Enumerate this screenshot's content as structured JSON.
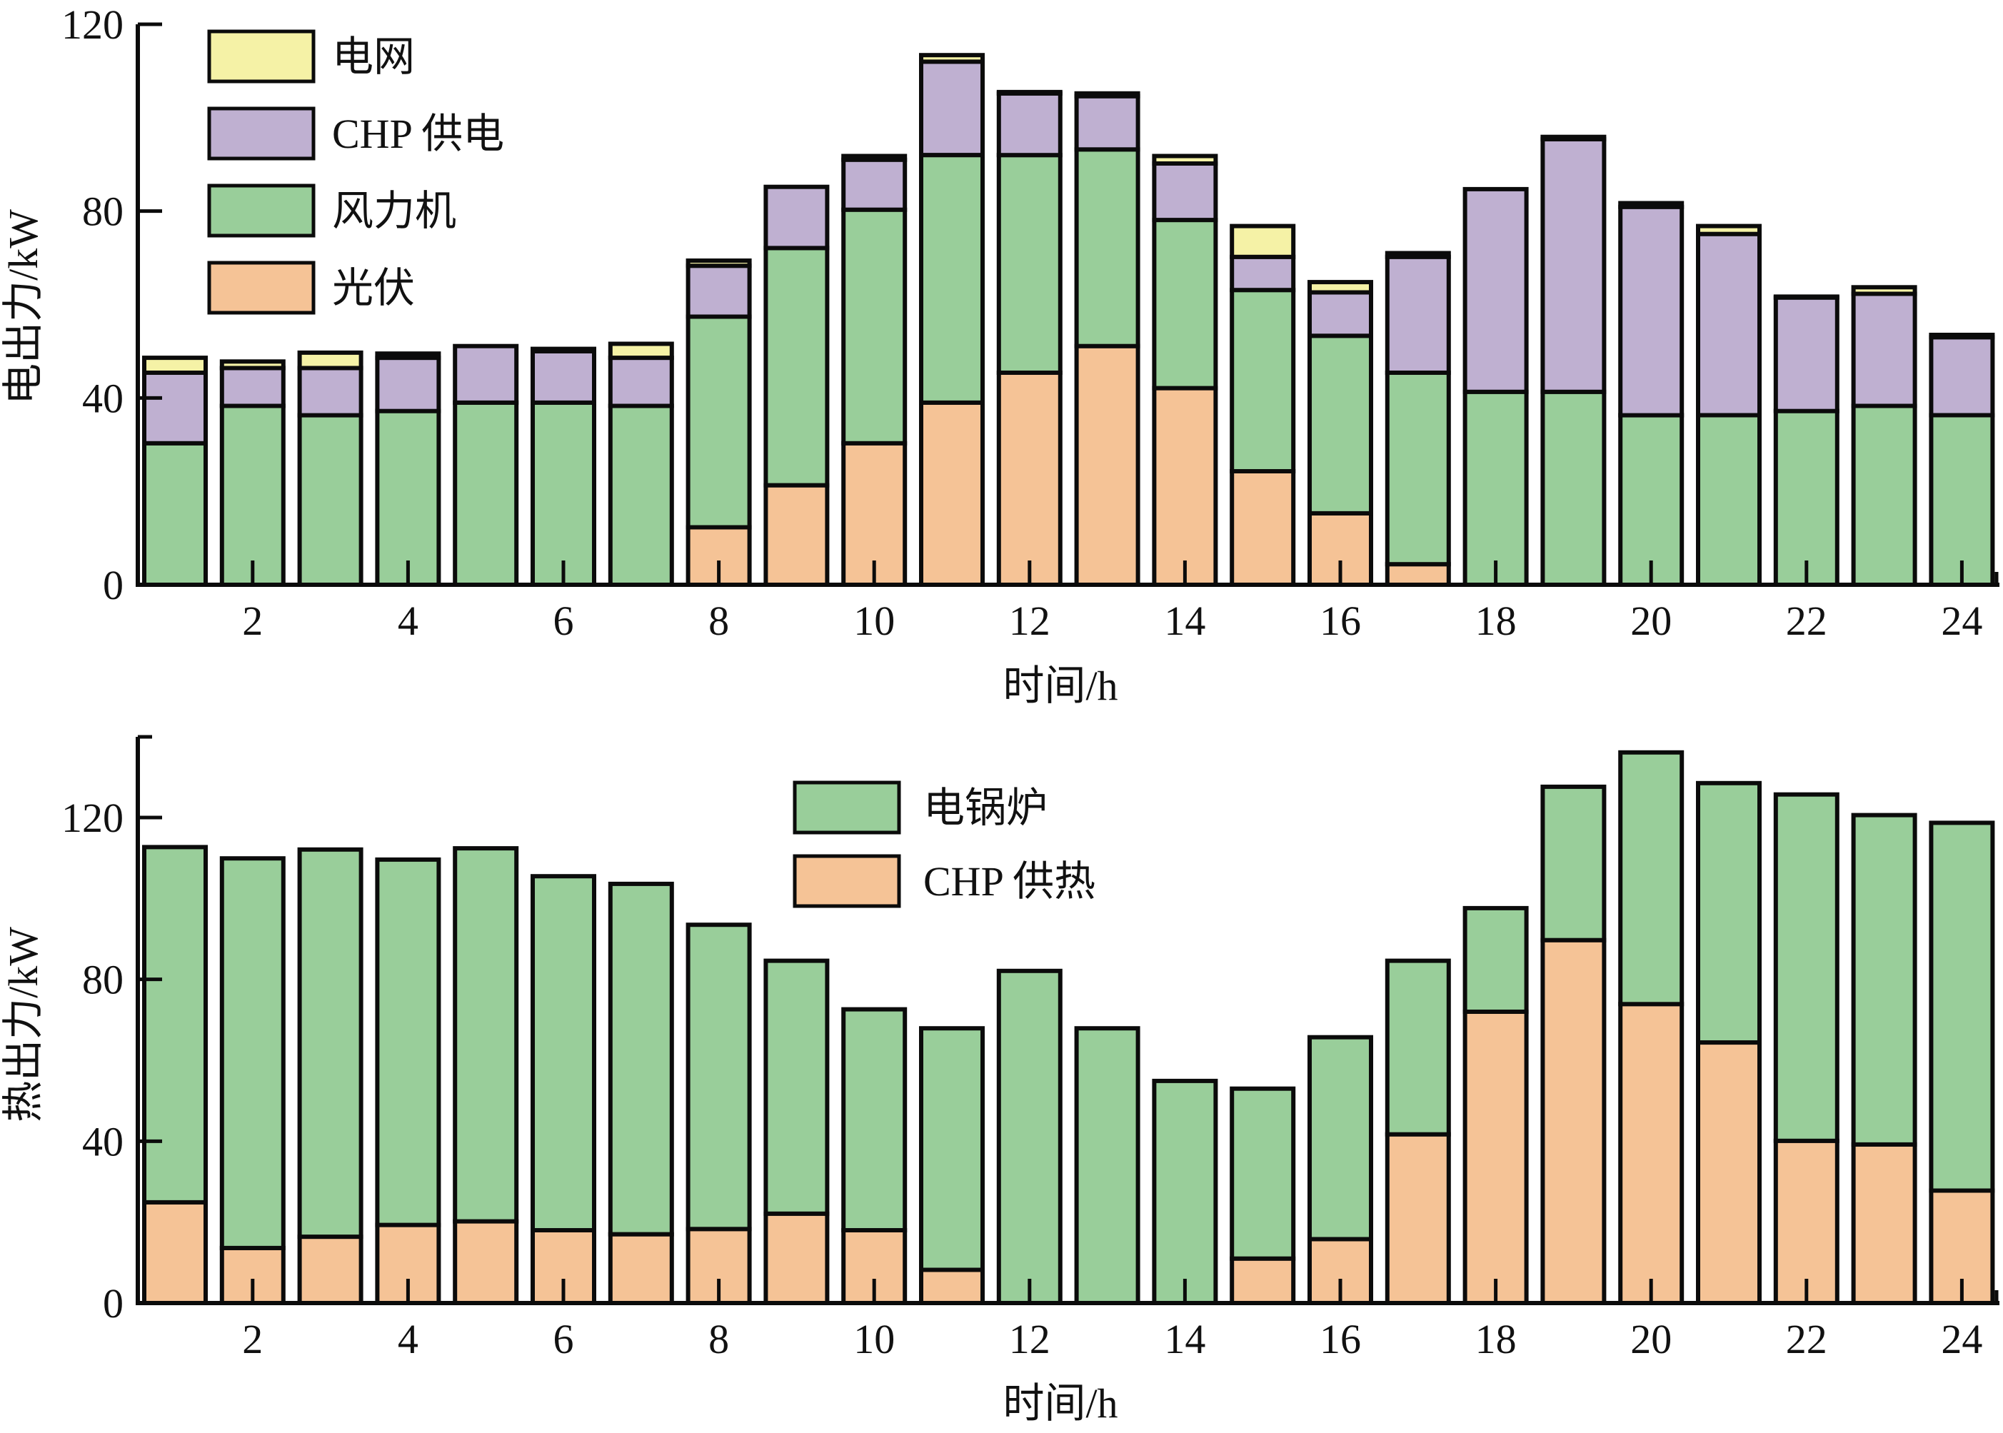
{
  "chart_data": [
    {
      "type": "bar",
      "stacked": true,
      "xlabel": "时间/h",
      "ylabel": "电出力/kW",
      "ylim": [
        0,
        120
      ],
      "yticks": [
        "0",
        "40",
        "80",
        "120"
      ],
      "ytick_values": [
        0,
        40,
        80,
        120
      ],
      "xticks": [
        "2",
        "4",
        "6",
        "8",
        "10",
        "12",
        "14",
        "16",
        "18",
        "20",
        "22",
        "24"
      ],
      "xtick_values": [
        2,
        4,
        6,
        8,
        10,
        12,
        14,
        16,
        18,
        20,
        22,
        24
      ],
      "x": [
        1,
        2,
        3,
        4,
        5,
        6,
        7,
        8,
        9,
        10,
        11,
        12,
        13,
        14,
        15,
        16,
        17,
        18,
        19,
        20,
        21,
        22,
        23,
        24
      ],
      "legend_position": "top-left",
      "legend_order": [
        "电网",
        "CHP 供电",
        "风力机",
        "光伏"
      ],
      "series": [
        {
          "name": "光伏",
          "color": "#f5c396",
          "values": [
            0,
            0,
            0,
            0,
            0,
            0,
            0,
            12.3,
            21.3,
            30.3,
            39,
            45.4,
            51.1,
            42.1,
            24.3,
            15.3,
            4.4,
            0,
            0,
            0,
            0,
            0,
            0,
            0
          ]
        },
        {
          "name": "风力机",
          "color": "#99ce9a",
          "values": [
            30.3,
            38.3,
            36.3,
            37.2,
            39,
            39,
            38.3,
            45.1,
            50.8,
            50,
            53,
            46.6,
            42.1,
            36,
            38.8,
            38,
            41,
            41.3,
            41.3,
            36.3,
            36.3,
            37.2,
            38.3,
            36.3
          ]
        },
        {
          "name": "CHP 供电",
          "color": "#bfb0d1",
          "values": [
            15.1,
            8.1,
            10.1,
            11.4,
            12.1,
            11,
            10.3,
            10.9,
            13.1,
            10.7,
            20,
            13.2,
            11.4,
            12.1,
            7.1,
            9.3,
            24.8,
            43.4,
            54.1,
            44.6,
            38.8,
            24.3,
            24,
            16.7
          ]
        },
        {
          "name": "电网",
          "color": "#f5f2a6",
          "values": [
            3.2,
            1.4,
            3.3,
            0.9,
            0,
            0.5,
            3,
            1.1,
            0,
            0.8,
            1.4,
            0.3,
            0.6,
            1.6,
            6.6,
            2.2,
            0.8,
            0,
            0.5,
            0.8,
            1.7,
            0.2,
            1.4,
            0.5
          ]
        }
      ]
    },
    {
      "type": "bar",
      "stacked": true,
      "xlabel": "时间/h",
      "ylabel": "热出力/kW",
      "ylim": [
        0,
        140
      ],
      "yticks": [
        "0",
        "40",
        "80",
        "120"
      ],
      "ytick_values": [
        0,
        40,
        80,
        120
      ],
      "xticks": [
        "2",
        "4",
        "6",
        "8",
        "10",
        "12",
        "14",
        "16",
        "18",
        "20",
        "22",
        "24"
      ],
      "xtick_values": [
        2,
        4,
        6,
        8,
        10,
        12,
        14,
        16,
        18,
        20,
        22,
        24
      ],
      "x": [
        1,
        2,
        3,
        4,
        5,
        6,
        7,
        8,
        9,
        10,
        11,
        12,
        13,
        14,
        15,
        16,
        17,
        18,
        19,
        20,
        21,
        22,
        23,
        24
      ],
      "legend_position": "top-center",
      "legend_order": [
        "电锅炉",
        "CHP 供热"
      ],
      "series": [
        {
          "name": "CHP 供热",
          "color": "#f5c396",
          "values": [
            24.9,
            13.6,
            16.4,
            19.3,
            20.2,
            18,
            17,
            18.3,
            22.1,
            18,
            8.2,
            0,
            0,
            0,
            11,
            15.8,
            41.7,
            72,
            89.7,
            73.9,
            64.4,
            40.1,
            39.2,
            27.8
          ]
        },
        {
          "name": "电锅炉",
          "color": "#99ce9a",
          "values": [
            87.8,
            96.3,
            95.7,
            90.3,
            92.2,
            87.5,
            86.6,
            75.2,
            62.5,
            54.6,
            59.7,
            82.1,
            67.9,
            54.9,
            42,
            49.9,
            42.9,
            25.6,
            37.9,
            62.2,
            64.1,
            85.6,
            81.4,
            90.9
          ]
        }
      ]
    }
  ]
}
